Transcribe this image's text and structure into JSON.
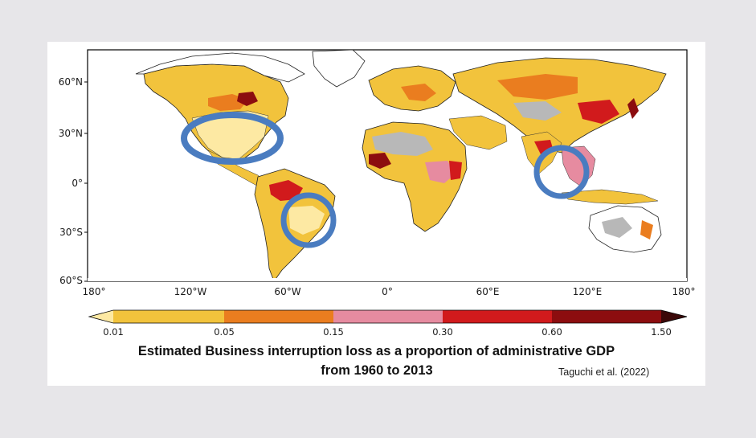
{
  "map": {
    "lat_labels": [
      "60°N",
      "30°N",
      "0°",
      "30°S",
      "60°S"
    ],
    "lon_labels": [
      "180°",
      "120°W",
      "60°W",
      "0°",
      "60°E",
      "120°E",
      "180°"
    ]
  },
  "colorbar": {
    "ticks": [
      "0.01",
      "0.05",
      "0.15",
      "0.30",
      "0.60",
      "1.50"
    ],
    "colors": [
      "#fde9a3",
      "#f2c33c",
      "#ea7d1f",
      "#e68ba0",
      "#d11a1c",
      "#8c0d0f",
      "#3b0808"
    ],
    "extend": "both"
  },
  "highlight_color": "#4a7cc0",
  "caption": {
    "line1": "Estimated Business interruption loss as a proportion of administrative GDP",
    "line2": "from 1960 to 2013",
    "credit": "Taguchi et al. (2022)"
  }
}
